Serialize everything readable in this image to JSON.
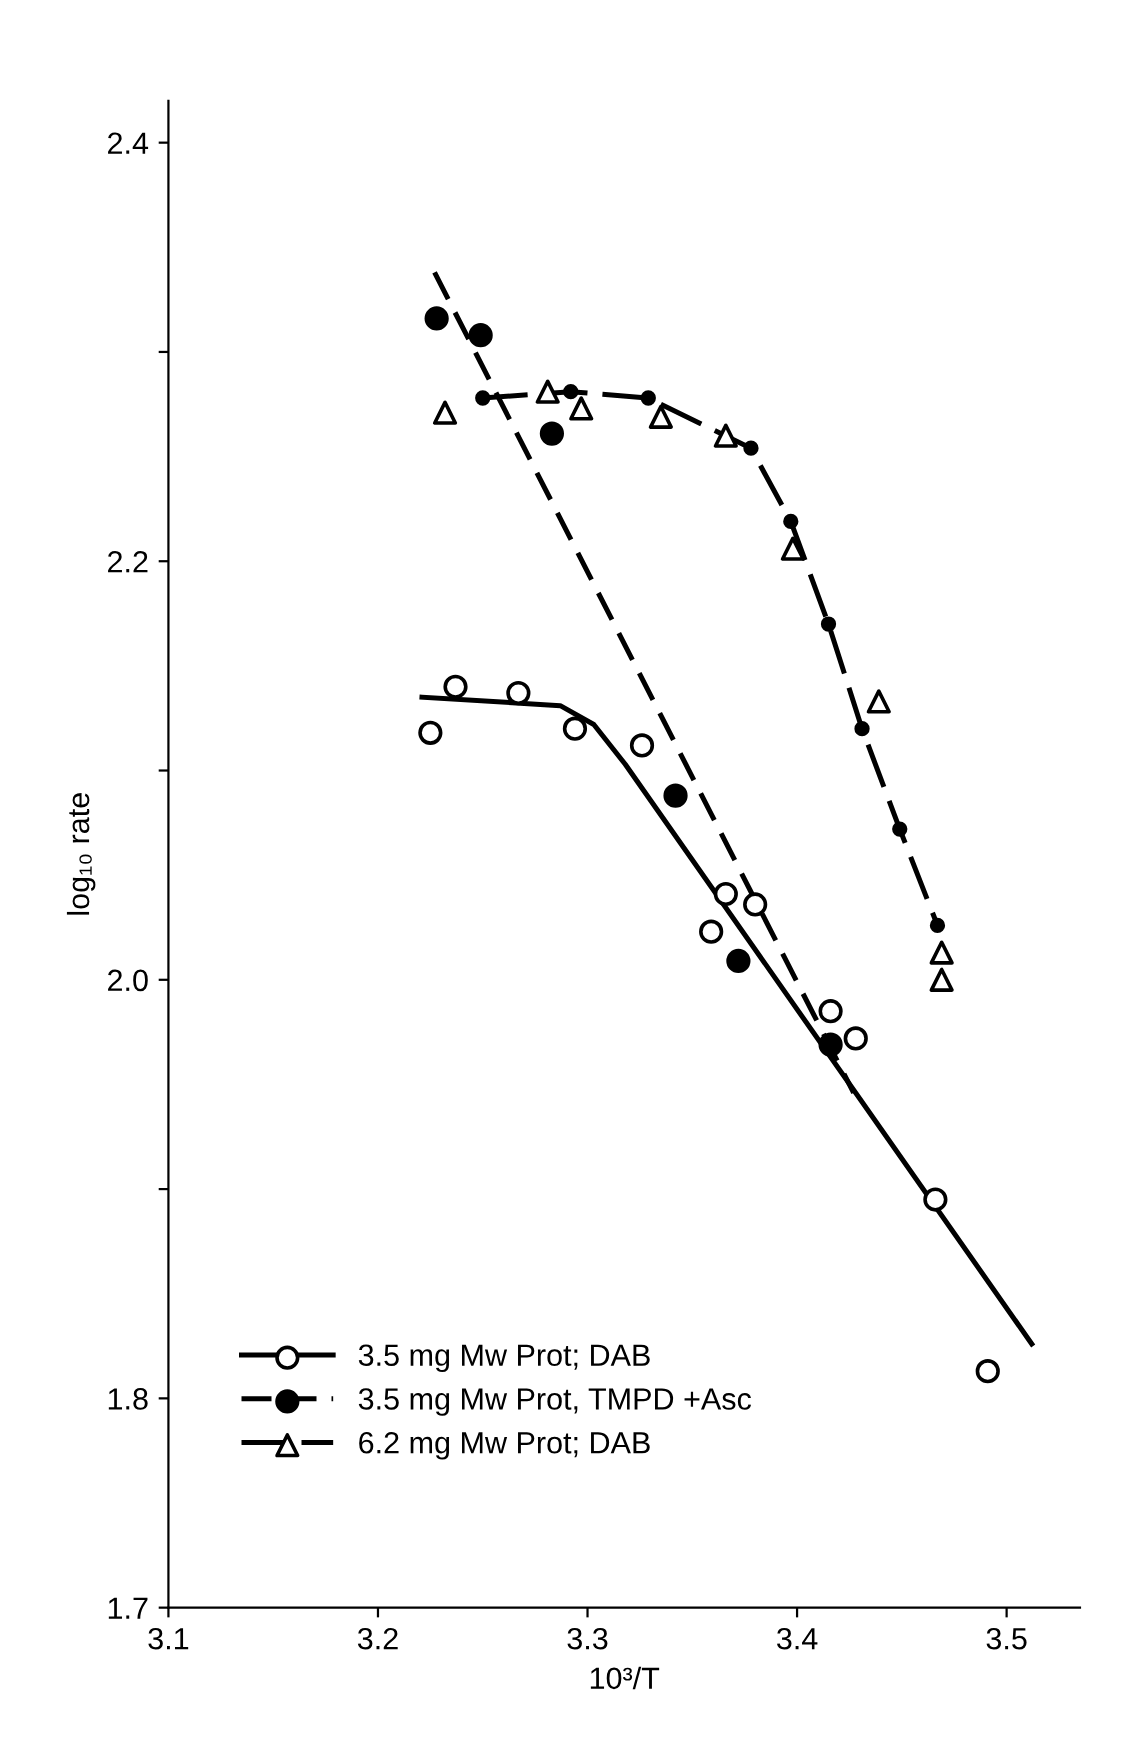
{
  "chart_data": {
    "type": "scatter",
    "xlabel": "10³/T",
    "ylabel": "log₁₀ rate",
    "xlim": [
      3.1,
      3.535
    ],
    "ylim": [
      1.7,
      2.42
    ],
    "xticks": [
      3.1,
      3.2,
      3.3,
      3.4,
      3.5
    ],
    "yticks": [
      {
        "value": 1.7,
        "label": "1.7"
      },
      {
        "value": 1.8,
        "label": "1.8"
      },
      {
        "value": 1.9,
        "label": null
      },
      {
        "value": 2.0,
        "label": "2.0"
      },
      {
        "value": 2.1,
        "label": null
      },
      {
        "value": 2.2,
        "label": "2.2"
      },
      {
        "value": 2.3,
        "label": null
      },
      {
        "value": 2.4,
        "label": "2.4"
      }
    ],
    "grid": false,
    "legend": "bottom left",
    "series": [
      {
        "name": "3.5 mg Mw Prot; DAB",
        "marker": "circle",
        "color": "#ffffff",
        "x": [
          3.225,
          3.237,
          3.267,
          3.294,
          3.326,
          3.359,
          3.366,
          3.38,
          3.416,
          3.428,
          3.466,
          3.491
        ],
        "values": [
          2.118,
          2.14,
          2.137,
          2.12,
          2.112,
          2.023,
          2.041,
          2.036,
          1.985,
          1.972,
          1.895,
          1.813
        ]
      },
      {
        "name": "3.5 mg Mw Prot, TMPD +Asc",
        "marker": "circle",
        "color": "#000000",
        "x": [
          3.228,
          3.249,
          3.283,
          3.342,
          3.372,
          3.416
        ],
        "values": [
          2.316,
          2.308,
          2.261,
          2.088,
          2.009,
          1.969
        ]
      },
      {
        "name": "6.2 mg Mw Prot; DAB",
        "marker": "triangle",
        "color": "#ffffff",
        "x": [
          3.232,
          3.281,
          3.297,
          3.335,
          3.366,
          3.398,
          3.439,
          3.469,
          3.469
        ],
        "values": [
          2.271,
          2.281,
          2.273,
          2.269,
          2.26,
          2.206,
          2.133,
          2.013,
          2.0
        ]
      },
      {
        "type": "line",
        "line_style": "solid",
        "marker": "none",
        "color": "#000000",
        "x": [
          3.221,
          3.287,
          3.303,
          3.318,
          3.512
        ],
        "values": [
          2.135,
          2.131,
          2.122,
          2.103,
          1.826
        ]
      },
      {
        "type": "line",
        "line_style": "dashed",
        "marker": "none",
        "color": "#000000",
        "x": [
          3.227,
          3.427
        ],
        "values": [
          2.338,
          1.946
        ]
      },
      {
        "type": "line",
        "line_style": "dashed",
        "marker": "circle",
        "color": "#000000",
        "x": [
          3.25,
          3.292,
          3.329,
          3.378,
          3.397,
          3.415,
          3.431,
          3.449,
          3.467
        ],
        "values": [
          2.278,
          2.281,
          2.278,
          2.254,
          2.219,
          2.17,
          2.12,
          2.072,
          2.026
        ]
      }
    ]
  }
}
